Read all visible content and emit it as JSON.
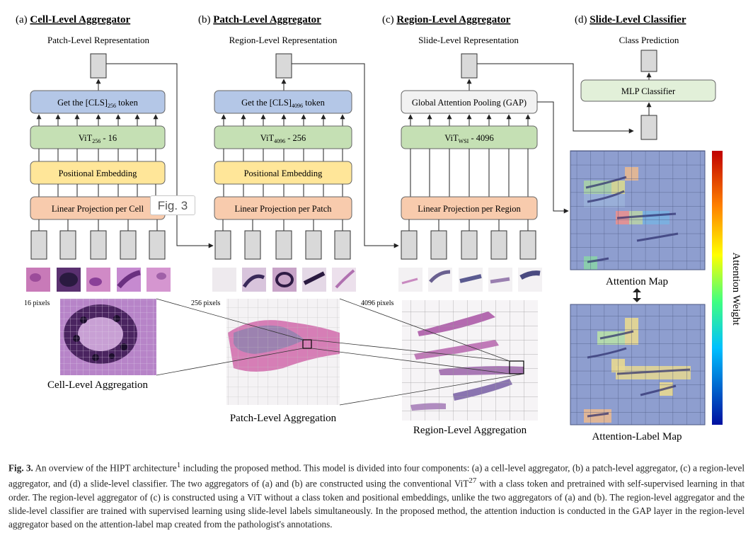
{
  "panels": {
    "a": {
      "letter": "(a)",
      "name": "Cell-Level Aggregator",
      "output": "Patch-Level Representation",
      "cls": "Get the [CLS]",
      "cls_sub": "256",
      "cls_suffix": " token",
      "vit": "ViT",
      "vit_sub": "256",
      "vit_suffix": " - 16",
      "pos": "Positional Embedding",
      "proj": "Linear Projection per Cell",
      "pixels": "16 pixels",
      "agg": "Cell-Level Aggregation"
    },
    "b": {
      "letter": "(b)",
      "name": "Patch-Level Aggregator",
      "output": "Region-Level Representation",
      "cls": "Get the [CLS]",
      "cls_sub": "4096",
      "cls_suffix": " token",
      "vit": "ViT",
      "vit_sub": "4096",
      "vit_suffix": " - 256",
      "pos": "Positional Embedding",
      "proj": "Linear Projection per Patch",
      "pixels": "256 pixels",
      "agg": "Patch-Level Aggregation"
    },
    "c": {
      "letter": "(c)",
      "name": "Region-Level Aggregator",
      "output": "Slide-Level Representation",
      "gap": "Global Attention Pooling (GAP)",
      "vit": "ViT",
      "vit_sub": "WSI",
      "vit_suffix": " - 4096",
      "proj": "Linear Projection per Region",
      "pixels": "4096 pixels",
      "agg": "Region-Level Aggregation"
    },
    "d": {
      "letter": "(d)",
      "name": "Slide-Level Classifier",
      "output": "Class Prediction",
      "mlp": "MLP Classifier",
      "attention_map": "Attention Map",
      "attention_label_map": "Attention-Label Map",
      "colorbar": "Attention Weight"
    }
  },
  "fig_tag": "Fig. 3",
  "caption": {
    "label": "Fig. 3.",
    "text_1": " An overview of the HIPT architecture",
    "ref_1": "1",
    "text_2": " including the proposed method. This model is divided into four components: (a) a cell-level aggregator, (b) a patch-level aggregator, (c) a region-level aggregator, and (d) a slide-level classifier. The two aggregators of (a) and (b) are constructed using the conventional ViT",
    "ref_2": "27",
    "text_3": " with a class token and pretrained with self-supervised learning in that order. The region-level aggregator of (c) is constructed using a ViT without a class token and positional embeddings, unlike the two aggregators of (a) and (b). The region-level aggregator and the slide-level classifier are trained with supervised learning using slide-level labels simultaneously. In the proposed method, the attention induction is conducted in the GAP layer in the region-level aggregator based on the attention-label map created from the pathologist's annotations."
  },
  "colors": {
    "cls_fill": "#b4c7e7",
    "vit_fill": "#c5e0b4",
    "pos_fill": "#ffe699",
    "proj_fill": "#f8cbad",
    "gap_fill": "#f2f2f2",
    "mlp_fill": "#e2f0d9",
    "token_fill": "#d9d9d9",
    "grid_fill": "#8e9ecf"
  }
}
